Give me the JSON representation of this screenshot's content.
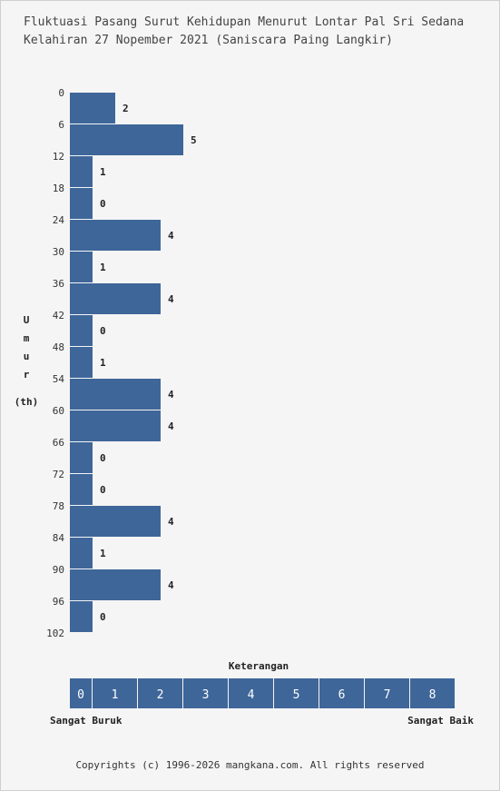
{
  "title": {
    "line1": "Fluktuasi Pasang Surut Kehidupan Menurut Lontar Pal Sri Sedana",
    "line2": "Kelahiran 27 Nopember 2021 (Saniscara Paing Langkir)"
  },
  "chart_data": {
    "type": "bar",
    "orientation": "horizontal",
    "ylabel_chars": [
      "U",
      "m",
      "u",
      "r",
      "(th)"
    ],
    "categories": [
      "0",
      "6",
      "12",
      "18",
      "24",
      "30",
      "36",
      "42",
      "48",
      "54",
      "60",
      "66",
      "72",
      "78",
      "84",
      "90",
      "96"
    ],
    "y_ticks": [
      "0",
      "6",
      "12",
      "18",
      "24",
      "30",
      "36",
      "42",
      "48",
      "54",
      "60",
      "66",
      "72",
      "78",
      "84",
      "90",
      "96",
      "102"
    ],
    "values": [
      2,
      5,
      1,
      0,
      4,
      1,
      4,
      0,
      1,
      4,
      4,
      0,
      0,
      4,
      1,
      4,
      0
    ],
    "xlim": [
      0,
      8
    ],
    "bar_color": "#3e6699"
  },
  "legend": {
    "title": "Keterangan",
    "scale": [
      "0",
      "1",
      "2",
      "3",
      "4",
      "5",
      "6",
      "7",
      "8"
    ],
    "left_label": "Sangat Buruk",
    "right_label": "Sangat Baik"
  },
  "footer": {
    "copyright": "Copyrights (c) 1996-2026 mangkana.com. All rights reserved"
  }
}
